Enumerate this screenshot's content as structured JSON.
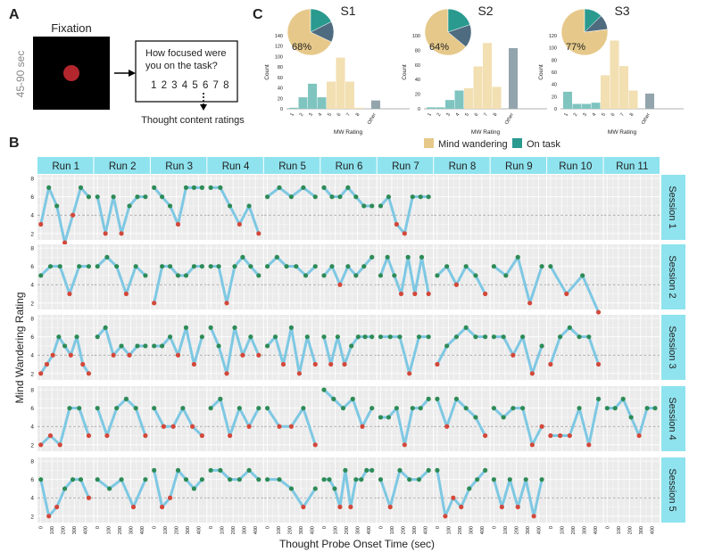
{
  "panel_a": {
    "letter": "A",
    "fixation_label": "Fixation",
    "time_label": "45-90 sec",
    "question": "How focused were you on the task?",
    "scale": "1 2 3 4 5 6 7 8",
    "ratings_label": "Thought content ratings",
    "colors": {
      "screen": "#000000",
      "dot": "#b3262e"
    }
  },
  "panel_b_letter": "B",
  "panel_c_letter": "C",
  "legend": [
    {
      "label": "Mind wandering",
      "color": "#e6c98a"
    },
    {
      "label": "On task",
      "color": "#2a9a8f"
    }
  ],
  "chart_data": [
    {
      "type": "bar",
      "title": "S1",
      "xlabel": "MW Rating",
      "ylabel": "Count",
      "categories": [
        "1",
        "2",
        "3",
        "4",
        "5",
        "6",
        "7",
        "8",
        "Other"
      ],
      "values": [
        2,
        22,
        48,
        22,
        52,
        98,
        52,
        2,
        16
      ],
      "ylim": [
        0,
        140
      ],
      "yticks": [
        "0",
        "20",
        "40",
        "60",
        "80",
        "100",
        "120",
        "140"
      ],
      "pie": {
        "mind_wandering_pct": 68,
        "label": "68%"
      }
    },
    {
      "type": "bar",
      "title": "S2",
      "xlabel": "MW Rating",
      "ylabel": "Count",
      "categories": [
        "1",
        "2",
        "3",
        "4",
        "5",
        "6",
        "7",
        "8",
        "Other"
      ],
      "values": [
        2,
        2,
        12,
        25,
        28,
        58,
        90,
        30,
        83
      ],
      "ylim": [
        0,
        100
      ],
      "yticks": [
        "0",
        "20",
        "40",
        "60",
        "80",
        "100"
      ],
      "pie": {
        "mind_wandering_pct": 64,
        "label": "64%"
      }
    },
    {
      "type": "bar",
      "title": "S3",
      "xlabel": "MW Rating",
      "ylabel": "Count",
      "categories": [
        "1",
        "2",
        "3",
        "4",
        "5",
        "6",
        "7",
        "8",
        "Other"
      ],
      "values": [
        28,
        8,
        8,
        10,
        55,
        112,
        70,
        30,
        25
      ],
      "ylim": [
        0,
        120
      ],
      "yticks": [
        "0",
        "20",
        "40",
        "60",
        "80",
        "100",
        "120"
      ],
      "pie": {
        "mind_wandering_pct": 77,
        "label": "77%"
      }
    },
    {
      "type": "line",
      "xlabel": "Thought Probe Onset Time (sec)",
      "ylabel": "Mind Wandering Rating",
      "run_labels": [
        "Run 1",
        "Run 2",
        "Run 3",
        "Run 4",
        "Run 5",
        "Run 6",
        "Run 7",
        "Run 8",
        "Run 9",
        "Run 10",
        "Run 11"
      ],
      "session_labels": [
        "Session 1",
        "Session 2",
        "Session 3",
        "Session 4",
        "Session 5"
      ],
      "yticks": [
        "2",
        "4",
        "6",
        "8"
      ],
      "xticks": [
        "0",
        "100",
        "200",
        "300",
        "400"
      ],
      "ylim": [
        1.3,
        8.4
      ],
      "xlim": [
        -30,
        470
      ],
      "threshold": 4,
      "colors": {
        "line": "#7ec8e3",
        "on_task": "#2e8b57",
        "mind_wandering": "#d3483a",
        "strip": "#8ee3ee"
      },
      "series": [
        [
          [
            3,
            7,
            5,
            1,
            4,
            7,
            6
          ],
          [
            6,
            2,
            6,
            2,
            5,
            6,
            6
          ],
          [
            7,
            6,
            5,
            3,
            7,
            7,
            7
          ],
          [
            7,
            7,
            5,
            3,
            5,
            2
          ],
          [
            6,
            7,
            6,
            7,
            6
          ],
          [
            7,
            6,
            6,
            7,
            6,
            5,
            5
          ],
          [
            5,
            6,
            3,
            2,
            6,
            6,
            6
          ],
          [],
          [],
          [],
          []
        ],
        [
          [
            5,
            6,
            6,
            3,
            6,
            6
          ],
          [
            6,
            7,
            6,
            3,
            6,
            5
          ],
          [
            2,
            6,
            6,
            5,
            5,
            6,
            6
          ],
          [
            6,
            6,
            2,
            6,
            7,
            6,
            5
          ],
          [
            6,
            7,
            6,
            6,
            5,
            6
          ],
          [
            5,
            6,
            4,
            6,
            5,
            6,
            7
          ],
          [
            5,
            7,
            5,
            3,
            7,
            3,
            7,
            3
          ],
          [
            5,
            6,
            4,
            6,
            5,
            3
          ],
          [
            6,
            5,
            7,
            2,
            6
          ],
          [
            6,
            3,
            5,
            1
          ],
          []
        ],
        [
          [
            2,
            3,
            4,
            6,
            5,
            4,
            6,
            3,
            2
          ],
          [
            6,
            7,
            4,
            5,
            4,
            5,
            5
          ],
          [
            5,
            5,
            6,
            4,
            7,
            3,
            6
          ],
          [
            7,
            5,
            2,
            7,
            4,
            6,
            4
          ],
          [
            5,
            6,
            3,
            7,
            2,
            6,
            3
          ],
          [
            6,
            3,
            6,
            3,
            5,
            6,
            6,
            6
          ],
          [
            6,
            6,
            6,
            2,
            6,
            6
          ],
          [
            3,
            5,
            6,
            7,
            6,
            6
          ],
          [
            6,
            6,
            4,
            6,
            2,
            5
          ],
          [
            3,
            6,
            7,
            6,
            6,
            3
          ],
          []
        ],
        [
          [
            2,
            3,
            2,
            6,
            6,
            3
          ],
          [
            6,
            3,
            6,
            7,
            6,
            3
          ],
          [
            6,
            4,
            4,
            6,
            4,
            3
          ],
          [
            6,
            7,
            3,
            6,
            4,
            6
          ],
          [
            6,
            4,
            4,
            6,
            2
          ],
          [
            8,
            7,
            6,
            7,
            4,
            6
          ],
          [
            5,
            5,
            6,
            2,
            6,
            6,
            7
          ],
          [
            7,
            4,
            7,
            6,
            5,
            3
          ],
          [
            6,
            5,
            6,
            6,
            2,
            4
          ],
          [
            3,
            3,
            3,
            6,
            2,
            7
          ],
          [
            6,
            6,
            7,
            5,
            3,
            6,
            6
          ]
        ],
        [
          [
            6,
            2,
            3,
            5,
            6,
            6,
            4
          ],
          [
            6,
            5,
            6,
            3,
            6
          ],
          [
            7,
            3,
            4,
            7,
            6,
            5,
            6
          ],
          [
            7,
            7,
            6,
            6,
            7,
            6
          ],
          [
            6,
            6,
            5,
            3,
            5
          ],
          [
            6,
            6,
            5,
            3,
            7,
            3,
            6,
            6,
            7,
            7
          ],
          [
            6,
            3,
            7,
            6,
            6,
            7
          ],
          [
            7,
            2,
            4,
            3,
            5,
            6,
            7
          ],
          [
            6,
            3,
            6,
            3,
            6,
            2,
            6
          ],
          [],
          []
        ]
      ]
    }
  ]
}
